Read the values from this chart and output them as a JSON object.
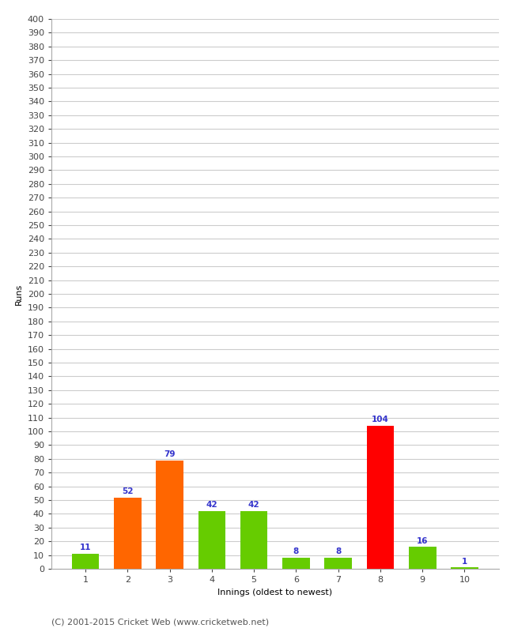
{
  "xlabel": "Innings (oldest to newest)",
  "ylabel": "Runs",
  "categories": [
    "1",
    "2",
    "3",
    "4",
    "5",
    "6",
    "7",
    "8",
    "9",
    "10"
  ],
  "values": [
    11,
    52,
    79,
    42,
    42,
    8,
    8,
    104,
    16,
    1
  ],
  "bar_colors": [
    "#66cc00",
    "#ff6600",
    "#ff6600",
    "#66cc00",
    "#66cc00",
    "#66cc00",
    "#66cc00",
    "#ff0000",
    "#66cc00",
    "#66cc00"
  ],
  "value_label_color": "#3333cc",
  "ylim": [
    0,
    400
  ],
  "ytick_step": 10,
  "grid_color": "#cccccc",
  "background_color": "#ffffff",
  "footer": "(C) 2001-2015 Cricket Web (www.cricketweb.net)",
  "axis_label_fontsize": 8,
  "tick_fontsize": 8,
  "value_fontsize": 7.5,
  "footer_fontsize": 8,
  "bar_width": 0.65
}
